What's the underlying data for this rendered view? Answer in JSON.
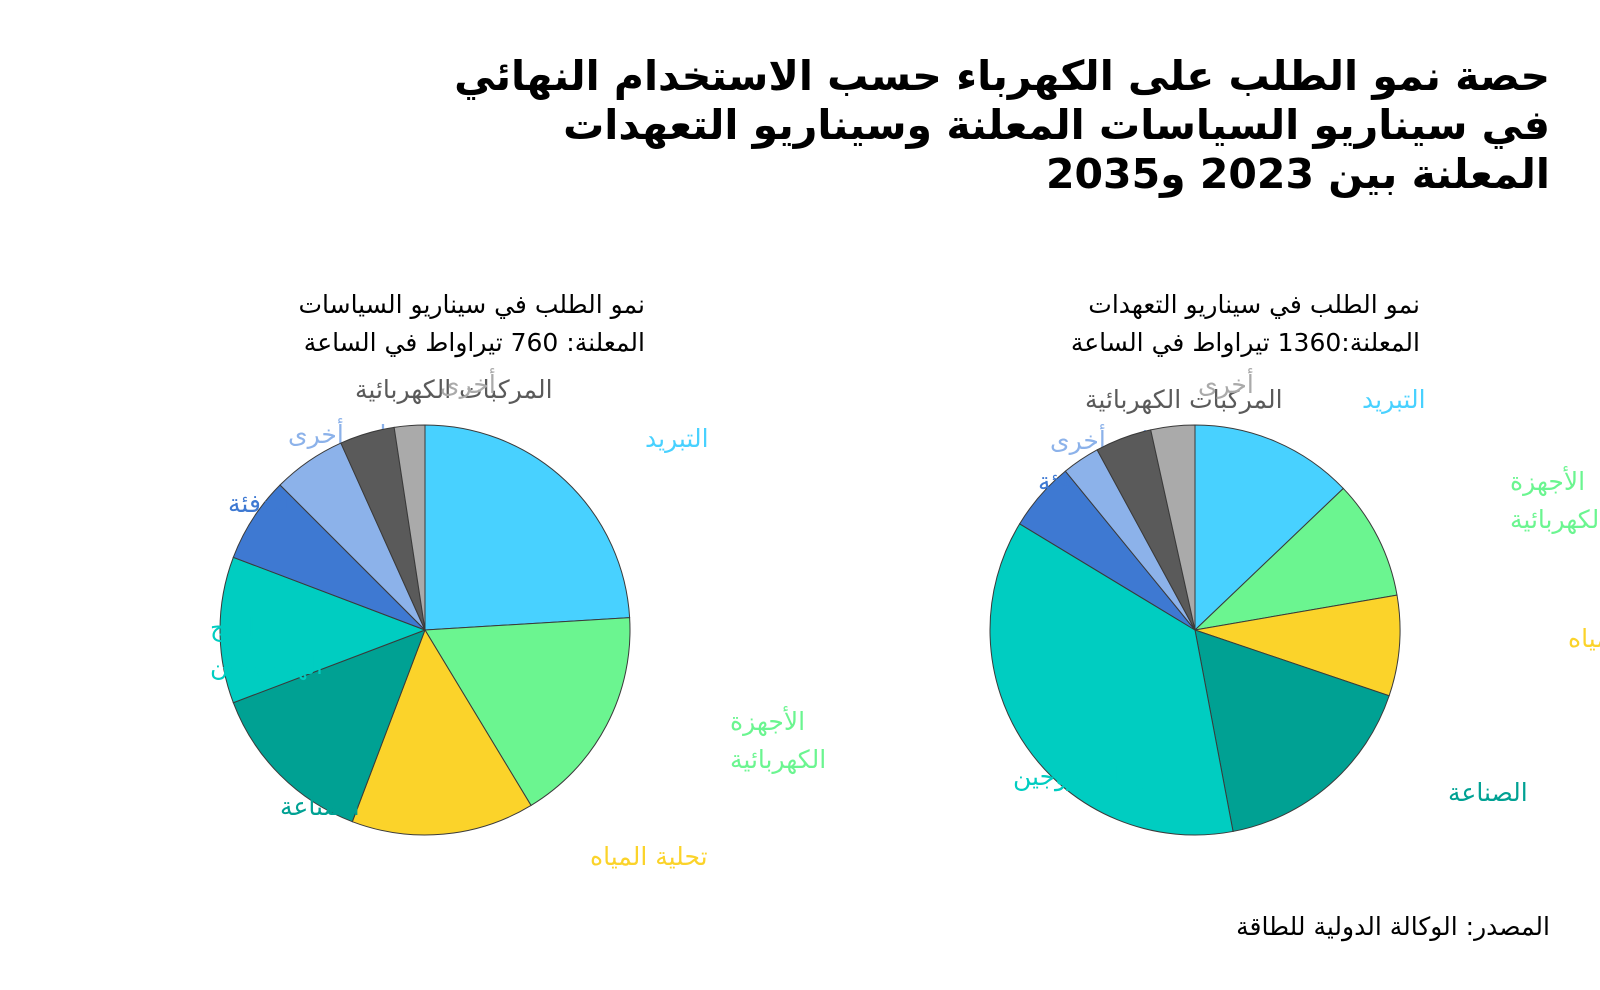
{
  "title_lines": [
    "حصة نمو الطلب على الكهرباء حسب الاستخدام النهائي",
    "في سيناريو السياسات المعلنة وسيناريو التعهدات",
    "المعلنة بين 2023 و2035"
  ],
  "source": "المصدر: الوكالة الدولية للطاقة",
  "colors": {
    "cooling": "#48D1FF",
    "appliances": "#6BF590",
    "desalination": "#FBD32A",
    "industry": "#00A193",
    "hydrogen": "#00CDC1",
    "heating": "#3E79D2",
    "other_buildings": "#8CB2EA",
    "ev": "#5A5A5A",
    "other": "#AAAAAA"
  },
  "chart_data": [
    {
      "type": "pie",
      "id": "steps",
      "title_lines": [
        "نمو الطلب في سيناريو السياسات",
        "المعلنة: 760 تيراواط في الساعة"
      ],
      "slices": [
        {
          "key": "cooling",
          "label_lines": [
            "التبريد"
          ],
          "value": 25
        },
        {
          "key": "appliances",
          "label_lines": [
            "الأجهزة",
            "الكهربائية"
          ],
          "value": 18
        },
        {
          "key": "desalination",
          "label_lines": [
            "تحلية المياه"
          ],
          "value": 15
        },
        {
          "key": "industry",
          "label_lines": [
            "الصناعة"
          ],
          "value": 14
        },
        {
          "key": "hydrogen",
          "label_lines": [
            "إنتاج",
            "الهيدروجين"
          ],
          "value": 12
        },
        {
          "key": "heating",
          "label_lines": [
            "التدفئة"
          ],
          "value": 7
        },
        {
          "key": "other_buildings",
          "label_lines": [
            "مباني أخرى"
          ],
          "value": 6
        },
        {
          "key": "ev",
          "label_lines": [
            "المركبات الكهربائية"
          ],
          "value": 4.5
        },
        {
          "key": "other",
          "label_lines": [
            "أخرى"
          ],
          "value": 2.5
        }
      ]
    },
    {
      "type": "pie",
      "id": "aps",
      "title_lines": [
        "نمو الطلب في سيناريو التعهدات",
        "المعلنة:1360  تيراواط في الساعة"
      ],
      "slices": [
        {
          "key": "cooling",
          "label_lines": [
            "التبريد"
          ],
          "value": 13
        },
        {
          "key": "appliances",
          "label_lines": [
            "الأجهزة",
            "الكهربائية"
          ],
          "value": 9.5
        },
        {
          "key": "desalination",
          "label_lines": [
            "تحلية المياه"
          ],
          "value": 8
        },
        {
          "key": "industry",
          "label_lines": [
            "الصناعة"
          ],
          "value": 17
        },
        {
          "key": "hydrogen",
          "label_lines": [
            "إنتاج الهيدروجين"
          ],
          "value": 37
        },
        {
          "key": "heating",
          "label_lines": [
            "التدفئة"
          ],
          "value": 5.5
        },
        {
          "key": "other_buildings",
          "label_lines": [
            "مباني أخرى"
          ],
          "value": 3
        },
        {
          "key": "ev",
          "label_lines": [
            "المركبات الكهربائية"
          ],
          "value": 4.5
        },
        {
          "key": "other",
          "label_lines": [
            "أخرى"
          ],
          "value": 3.5
        }
      ]
    }
  ]
}
